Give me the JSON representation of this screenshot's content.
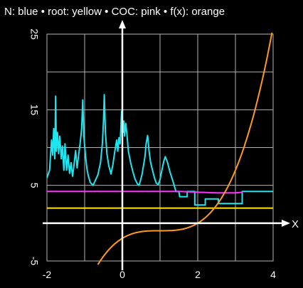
{
  "chart_data": {
    "type": "line",
    "title": "N: blue • root: yellow • COC: pink • f(x): orange",
    "xlabel": "X",
    "ylabel": "",
    "xlim": [
      -2,
      4
    ],
    "ylim": [
      -5,
      25
    ],
    "x_ticks": [
      -2,
      0,
      2,
      4
    ],
    "x_tick_labels": [
      "-2",
      "0",
      "2",
      "4"
    ],
    "y_ticks": [
      -5,
      5,
      15,
      25
    ],
    "y_tick_labels": [
      "-5",
      "5",
      "15",
      "25"
    ],
    "grid": true,
    "grid_x_step": 1,
    "grid_y_step": 5,
    "series": [
      {
        "name": "N",
        "color": "#1ee6f0",
        "points": [
          [
            -2.0,
            6.0
          ],
          [
            -1.93,
            7.0
          ],
          [
            -1.88,
            11.0
          ],
          [
            -1.85,
            9.0
          ],
          [
            -1.82,
            12.5
          ],
          [
            -1.79,
            8.5
          ],
          [
            -1.77,
            16.8
          ],
          [
            -1.75,
            9.5
          ],
          [
            -1.72,
            12.0
          ],
          [
            -1.69,
            9.2
          ],
          [
            -1.66,
            11.5
          ],
          [
            -1.62,
            8.5
          ],
          [
            -1.59,
            10.2
          ],
          [
            -1.55,
            7.0
          ],
          [
            -1.52,
            10.5
          ],
          [
            -1.48,
            7.0
          ],
          [
            -1.44,
            9.0
          ],
          [
            -1.4,
            6.6
          ],
          [
            -1.36,
            8.0
          ],
          [
            -1.32,
            6.2
          ],
          [
            -1.28,
            7.8
          ],
          [
            -1.24,
            9.6
          ],
          [
            -1.2,
            7.3
          ],
          [
            -1.16,
            9.0
          ],
          [
            -1.12,
            10.5
          ],
          [
            -1.08,
            12.5
          ],
          [
            -1.05,
            16.3
          ],
          [
            -1.02,
            11.5
          ],
          [
            -0.98,
            9.0
          ],
          [
            -0.94,
            7.2
          ],
          [
            -0.9,
            6.2
          ],
          [
            -0.85,
            5.4
          ],
          [
            -0.78,
            5.0
          ],
          [
            -0.72,
            5.6
          ],
          [
            -0.65,
            6.4
          ],
          [
            -0.58,
            8.0
          ],
          [
            -0.53,
            10.5
          ],
          [
            -0.5,
            13.5
          ],
          [
            -0.48,
            17.0
          ],
          [
            -0.45,
            12.0
          ],
          [
            -0.41,
            9.2
          ],
          [
            -0.36,
            7.6
          ],
          [
            -0.3,
            6.5
          ],
          [
            -0.25,
            7.8
          ],
          [
            -0.2,
            9.5
          ],
          [
            -0.15,
            11.0
          ],
          [
            -0.12,
            9.5
          ],
          [
            -0.09,
            11.3
          ],
          [
            -0.06,
            10.5
          ],
          [
            -0.04,
            12.5
          ],
          [
            -0.02,
            14.8
          ],
          [
            0.0,
            13.0
          ],
          [
            0.02,
            12.0
          ],
          [
            0.04,
            13.5
          ],
          [
            0.06,
            11.5
          ],
          [
            0.09,
            13.2
          ],
          [
            0.12,
            11.8
          ],
          [
            0.16,
            9.5
          ],
          [
            0.22,
            8.0
          ],
          [
            0.28,
            6.8
          ],
          [
            0.34,
            5.8
          ],
          [
            0.4,
            5.2
          ],
          [
            0.44,
            5.0
          ],
          [
            0.48,
            5.6
          ],
          [
            0.52,
            6.4
          ],
          [
            0.56,
            7.6
          ],
          [
            0.6,
            8.8
          ],
          [
            0.63,
            10.5
          ],
          [
            0.67,
            11.6
          ],
          [
            0.71,
            9.5
          ],
          [
            0.75,
            8.0
          ],
          [
            0.8,
            7.0
          ],
          [
            0.85,
            6.0
          ],
          [
            0.9,
            5.3
          ],
          [
            0.95,
            5.1
          ],
          [
            1.0,
            5.8
          ],
          [
            1.05,
            7.0
          ],
          [
            1.1,
            8.2
          ],
          [
            1.14,
            8.8
          ],
          [
            1.2,
            8.0
          ],
          [
            1.25,
            7.0
          ],
          [
            1.3,
            6.2
          ],
          [
            1.35,
            5.4
          ],
          [
            1.42,
            4.2
          ],
          [
            1.5,
            4.2
          ],
          [
            1.52,
            3.5
          ],
          [
            1.72,
            3.5
          ],
          [
            1.72,
            4.2
          ],
          [
            1.92,
            4.2
          ],
          [
            1.92,
            2.4
          ],
          [
            2.2,
            2.4
          ],
          [
            2.2,
            3.2
          ],
          [
            2.55,
            3.2
          ],
          [
            2.55,
            2.6
          ],
          [
            3.18,
            2.6
          ],
          [
            3.18,
            4.2
          ],
          [
            4.0,
            4.2
          ]
        ]
      },
      {
        "name": "root",
        "color": "#ffe600",
        "points": [
          [
            -2.0,
            2.0
          ],
          [
            4.0,
            2.0
          ]
        ]
      },
      {
        "name": "COC",
        "color": "#ff33ff",
        "points": [
          [
            -2.0,
            4.2
          ],
          [
            1.5,
            4.2
          ],
          [
            2.0,
            4.1
          ],
          [
            2.5,
            4.0
          ],
          [
            3.0,
            4.0
          ],
          [
            3.2,
            4.1
          ]
        ]
      },
      {
        "name": "f(x)",
        "color": "#ff9a1a",
        "function": "(x-1)^3 - 1"
      }
    ]
  }
}
